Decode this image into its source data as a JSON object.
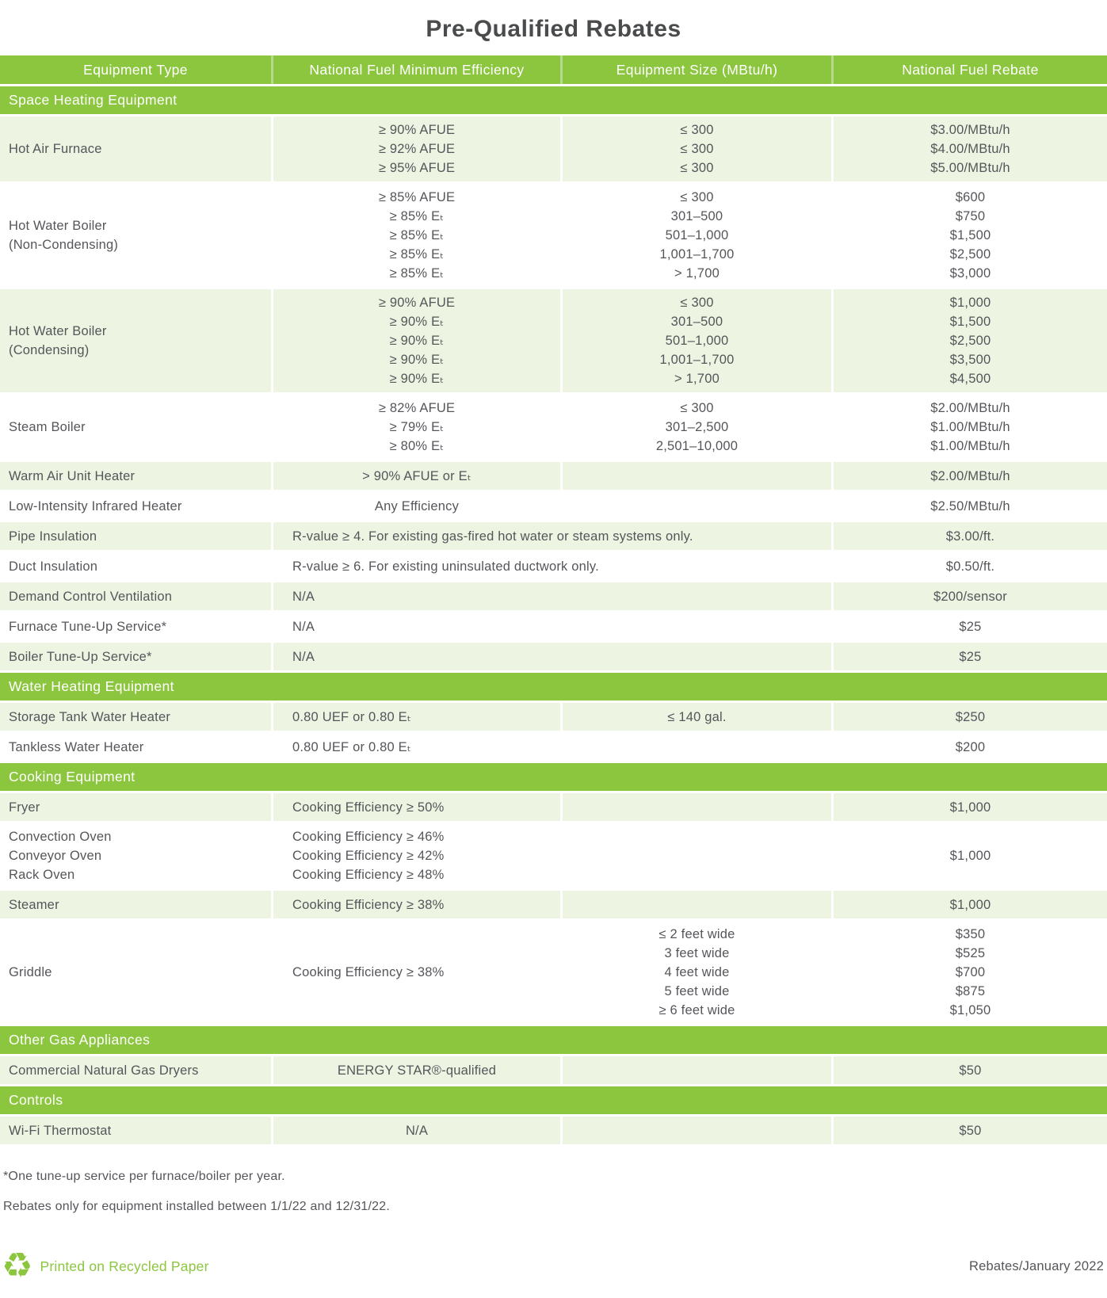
{
  "title": "Pre-Qualified Rebates",
  "colors": {
    "accent": "#8cc63f",
    "shade": "#edf4e2",
    "text": "#55565a",
    "title": "#4a4b4d",
    "header-gap": "#b7d98b"
  },
  "table": {
    "columns": [
      "Equipment Type",
      "National Fuel Minimum Efficiency",
      "Equipment Size (MBtu/h)",
      "National Fuel Rebate"
    ],
    "sections": [
      {
        "label": "Space Heating Equipment",
        "rows": [
          {
            "equipment": [
              "Hot Air Furnace"
            ],
            "efficiency": [
              "≥ 90% AFUE",
              "≥ 92% AFUE",
              "≥ 95% AFUE"
            ],
            "eff_align": "center",
            "size": [
              "≤ 300",
              "≤ 300",
              "≤ 300"
            ],
            "rebate": [
              "$3.00/MBtu/h",
              "$4.00/MBtu/h",
              "$5.00/MBtu/h"
            ]
          },
          {
            "equipment": [
              "Hot Water Boiler",
              "(Non-Condensing)"
            ],
            "efficiency": [
              "≥ 85% AFUE",
              "≥ 85% Eₜ",
              "≥ 85% Eₜ",
              "≥ 85% Eₜ",
              "≥ 85% Eₜ"
            ],
            "eff_align": "center",
            "size": [
              "≤ 300",
              "301–500",
              "501–1,000",
              "1,001–1,700",
              "> 1,700"
            ],
            "rebate": [
              "$600",
              "$750",
              "$1,500",
              "$2,500",
              "$3,000"
            ]
          },
          {
            "equipment": [
              "Hot Water Boiler",
              "(Condensing)"
            ],
            "efficiency": [
              "≥ 90% AFUE",
              "≥ 90% Eₜ",
              "≥ 90% Eₜ",
              "≥ 90% Eₜ",
              "≥ 90% Eₜ"
            ],
            "eff_align": "center",
            "size": [
              "≤ 300",
              "301–500",
              "501–1,000",
              "1,001–1,700",
              "> 1,700"
            ],
            "rebate": [
              "$1,000",
              "$1,500",
              "$2,500",
              "$3,500",
              "$4,500"
            ]
          },
          {
            "equipment": [
              "Steam Boiler"
            ],
            "efficiency": [
              "≥ 82% AFUE",
              "≥ 79% Eₜ",
              "≥ 80% Eₜ"
            ],
            "eff_align": "center",
            "size": [
              "≤ 300",
              "301–2,500",
              "2,501–10,000"
            ],
            "rebate": [
              "$2.00/MBtu/h",
              "$1.00/MBtu/h",
              "$1.00/MBtu/h"
            ]
          },
          {
            "equipment": [
              "Warm Air Unit Heater"
            ],
            "efficiency": [
              "> 90% AFUE or Eₜ"
            ],
            "eff_align": "center",
            "size": [],
            "rebate": [
              "$2.00/MBtu/h"
            ]
          },
          {
            "equipment": [
              "Low-Intensity Infrared Heater"
            ],
            "efficiency": [
              "Any Efficiency"
            ],
            "eff_align": "center",
            "size": [],
            "rebate": [
              "$2.50/MBtu/h"
            ]
          },
          {
            "equipment": [
              "Pipe Insulation"
            ],
            "wide": true,
            "efficiency": [
              "R-value ≥ 4. For existing gas-fired hot water or steam systems only."
            ],
            "rebate": [
              "$3.00/ft."
            ]
          },
          {
            "equipment": [
              "Duct Insulation"
            ],
            "wide": true,
            "efficiency": [
              "R-value ≥ 6. For existing uninsulated ductwork only."
            ],
            "rebate": [
              "$0.50/ft."
            ]
          },
          {
            "equipment": [
              "Demand Control Ventilation"
            ],
            "wide": true,
            "efficiency": [
              "N/A"
            ],
            "rebate": [
              "$200/sensor"
            ]
          },
          {
            "equipment": [
              "Furnace Tune-Up Service*"
            ],
            "wide": true,
            "efficiency": [
              "N/A"
            ],
            "rebate": [
              "$25"
            ]
          },
          {
            "equipment": [
              "Boiler Tune-Up Service*"
            ],
            "wide": true,
            "efficiency": [
              "N/A"
            ],
            "rebate": [
              "$25"
            ]
          }
        ]
      },
      {
        "label": "Water Heating Equipment",
        "rows": [
          {
            "equipment": [
              "Storage Tank Water Heater"
            ],
            "efficiency": [
              "0.80 UEF or 0.80 Eₜ"
            ],
            "eff_align": "left",
            "size": [
              "≤ 140 gal."
            ],
            "rebate": [
              "$250"
            ]
          },
          {
            "equipment": [
              "Tankless Water Heater"
            ],
            "efficiency": [
              "0.80 UEF or 0.80 Eₜ"
            ],
            "eff_align": "left",
            "size": [],
            "rebate": [
              "$200"
            ]
          }
        ]
      },
      {
        "label": "Cooking Equipment",
        "rows": [
          {
            "equipment": [
              "Fryer"
            ],
            "efficiency": [
              "Cooking Efficiency ≥ 50%"
            ],
            "eff_align": "left",
            "size": [],
            "rebate": [
              "$1,000"
            ]
          },
          {
            "equipment": [
              "Convection Oven",
              "Conveyor Oven",
              "Rack Oven"
            ],
            "efficiency": [
              "Cooking Efficiency ≥ 46%",
              "Cooking Efficiency ≥ 42%",
              "Cooking Efficiency ≥ 48%"
            ],
            "eff_align": "left",
            "size": [],
            "rebate": [
              "$1,000"
            ]
          },
          {
            "equipment": [
              "Steamer"
            ],
            "efficiency": [
              "Cooking Efficiency ≥ 38%"
            ],
            "eff_align": "left",
            "size": [],
            "rebate": [
              "$1,000"
            ]
          },
          {
            "equipment": [
              "Griddle"
            ],
            "efficiency": [
              "Cooking Efficiency ≥ 38%"
            ],
            "eff_align": "left",
            "size": [
              "≤ 2 feet wide",
              "3 feet wide",
              "4 feet wide",
              "5 feet wide",
              "≥ 6 feet wide"
            ],
            "rebate": [
              "$350",
              "$525",
              "$700",
              "$875",
              "$1,050"
            ]
          }
        ]
      },
      {
        "label": "Other Gas Appliances",
        "rows": [
          {
            "equipment": [
              "Commercial Natural Gas Dryers"
            ],
            "efficiency": [
              "ENERGY STAR®-qualified"
            ],
            "eff_align": "center",
            "size": [],
            "rebate": [
              "$50"
            ]
          }
        ]
      },
      {
        "label": "Controls",
        "rows": [
          {
            "equipment": [
              "Wi-Fi Thermostat"
            ],
            "efficiency": [
              "N/A"
            ],
            "eff_align": "center",
            "size": [],
            "rebate": [
              "$50"
            ]
          }
        ]
      }
    ]
  },
  "footnotes": [
    "*One tune-up service per furnace/boiler per year.",
    "Rebates only for equipment installed between 1/1/22 and 12/31/22."
  ],
  "footer": {
    "recycle_icon": "♻",
    "recycled_label": "Printed on Recycled Paper",
    "edition_label": "Rebates/January 2022"
  }
}
